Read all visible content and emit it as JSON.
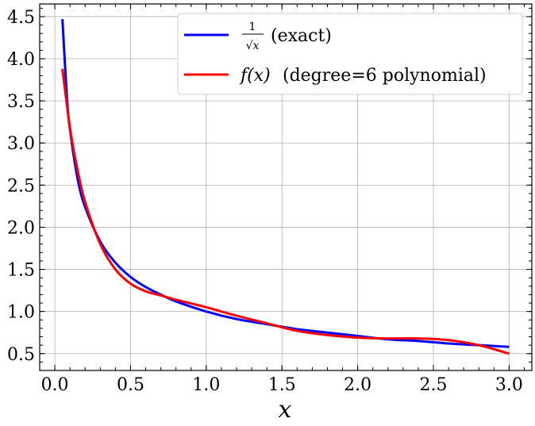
{
  "chart_data": {
    "type": "line",
    "title": "",
    "xlabel": "x",
    "ylabel": "",
    "xlim": [
      -0.1,
      3.15
    ],
    "ylim": [
      0.3,
      4.65
    ],
    "grid": true,
    "legend_position": "top-right",
    "xticks": [
      0.0,
      0.5,
      1.0,
      1.5,
      2.0,
      2.5,
      3.0
    ],
    "xtick_labels": [
      "0.0",
      "0.5",
      "1.0",
      "1.5",
      "2.0",
      "2.5",
      "3.0"
    ],
    "yticks": [
      0.5,
      1.0,
      1.5,
      2.0,
      2.5,
      3.0,
      3.5,
      4.0,
      4.5
    ],
    "ytick_labels": [
      "0.5",
      "1.0",
      "1.5",
      "2.0",
      "2.5",
      "3.0",
      "3.5",
      "4.0",
      "4.5"
    ],
    "series": [
      {
        "name": "1/√x (exact)",
        "legend_numerator": "1",
        "legend_denominator": "√x",
        "legend_suffix": "(exact)",
        "color": "#0000ff",
        "points": [
          [
            0.05,
            4.47
          ],
          [
            0.08,
            3.54
          ],
          [
            0.1,
            3.16
          ],
          [
            0.15,
            2.58
          ],
          [
            0.2,
            2.24
          ],
          [
            0.3,
            1.83
          ],
          [
            0.4,
            1.58
          ],
          [
            0.5,
            1.41
          ],
          [
            0.6,
            1.29
          ],
          [
            0.7,
            1.2
          ],
          [
            0.8,
            1.12
          ],
          [
            1.0,
            1.0
          ],
          [
            1.2,
            0.91
          ],
          [
            1.4,
            0.85
          ],
          [
            1.6,
            0.79
          ],
          [
            1.8,
            0.75
          ],
          [
            2.0,
            0.71
          ],
          [
            2.2,
            0.67
          ],
          [
            2.4,
            0.65
          ],
          [
            2.6,
            0.62
          ],
          [
            2.8,
            0.6
          ],
          [
            3.0,
            0.58
          ]
        ]
      },
      {
        "name": "f(x) (degree=6 polynomial)",
        "legend_func": "f(x)",
        "legend_suffix": "(degree=6 polynomial)",
        "color": "#ff0000",
        "points": [
          [
            0.05,
            3.88
          ],
          [
            0.1,
            3.18
          ],
          [
            0.15,
            2.68
          ],
          [
            0.2,
            2.3
          ],
          [
            0.3,
            1.8
          ],
          [
            0.4,
            1.5
          ],
          [
            0.5,
            1.33
          ],
          [
            0.6,
            1.24
          ],
          [
            0.7,
            1.19
          ],
          [
            0.8,
            1.14
          ],
          [
            1.0,
            1.05
          ],
          [
            1.2,
            0.95
          ],
          [
            1.4,
            0.86
          ],
          [
            1.6,
            0.77
          ],
          [
            1.8,
            0.72
          ],
          [
            2.0,
            0.69
          ],
          [
            2.2,
            0.68
          ],
          [
            2.4,
            0.68
          ],
          [
            2.6,
            0.66
          ],
          [
            2.8,
            0.6
          ],
          [
            3.0,
            0.5
          ]
        ]
      }
    ]
  }
}
